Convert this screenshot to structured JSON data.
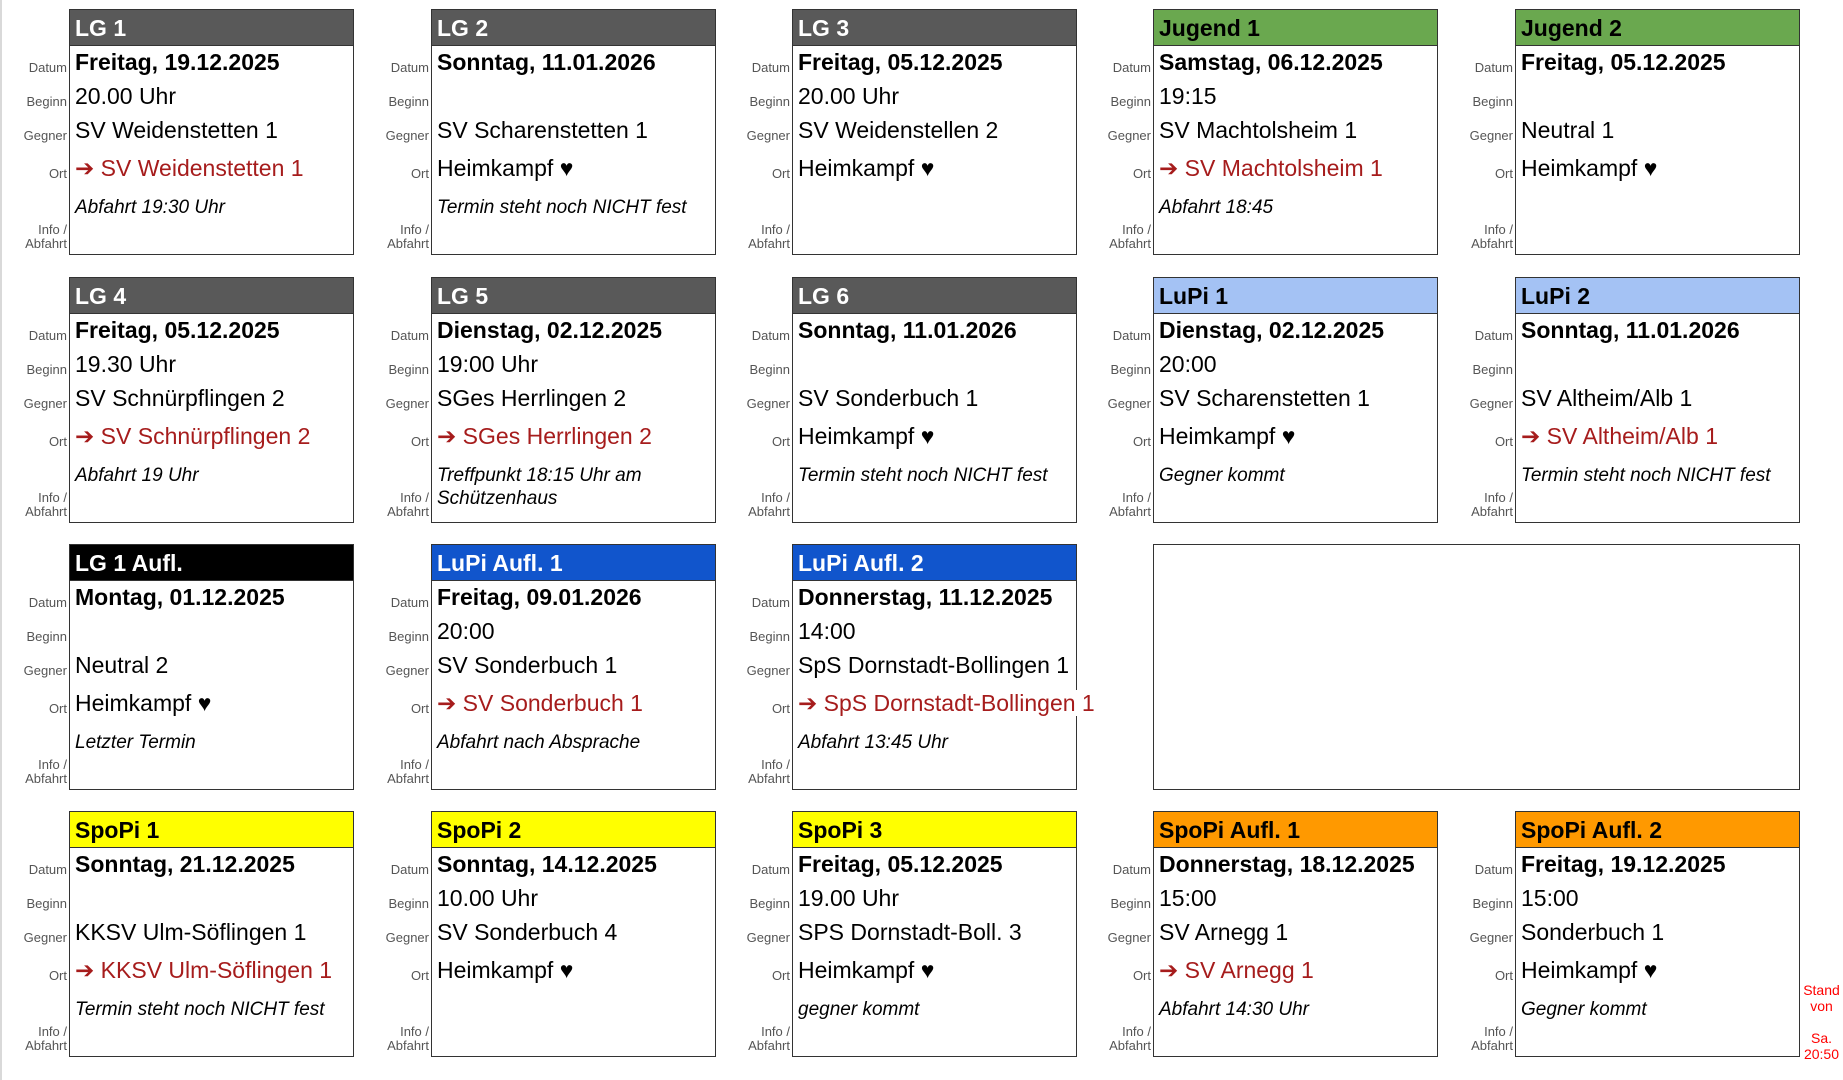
{
  "labels": {
    "datum": "Datum",
    "beginn": "Beginn",
    "gegner": "Gegner",
    "ort": "Ort",
    "info1": "Info /",
    "info2": "Abfahrt"
  },
  "away_arrow": "➔",
  "colors": {
    "gray": "#595959",
    "green": "#6aa84f",
    "lightblue": "#a4c2f4",
    "black": "#000000",
    "blue": "#1155cc",
    "yellow": "#ffff00",
    "orange": "#ff9900",
    "away_text": "#a61c1c",
    "stand_text": "#ff0000"
  },
  "cards": [
    {
      "title": "LG 1",
      "color": "#595959",
      "fg": "#ffffff",
      "datum": "Freitag, 19.12.2025",
      "beginn": "20.00 Uhr",
      "gegner": "SV Weidenstetten 1",
      "ort": "SV Weidenstetten 1",
      "away": true,
      "info": "Abfahrt 19:30 Uhr"
    },
    {
      "title": "LG 2",
      "color": "#595959",
      "fg": "#ffffff",
      "datum": "Sonntag, 11.01.2026",
      "beginn": "",
      "gegner": "SV Scharenstetten 1",
      "ort": "Heimkampf ♥",
      "away": false,
      "info": "Termin steht noch NICHT fest"
    },
    {
      "title": "LG 3",
      "color": "#595959",
      "fg": "#ffffff",
      "datum": "Freitag, 05.12.2025",
      "beginn": "20.00 Uhr",
      "gegner": "SV Weidenstellen 2",
      "ort": "Heimkampf ♥",
      "away": false,
      "info": ""
    },
    {
      "title": "Jugend 1",
      "color": "#6aa84f",
      "fg": "#000000",
      "datum": "Samstag, 06.12.2025",
      "beginn": "19:15",
      "gegner": "SV Machtolsheim 1",
      "ort": "SV Machtolsheim 1",
      "away": true,
      "info": "Abfahrt 18:45"
    },
    {
      "title": "Jugend 2",
      "color": "#6aa84f",
      "fg": "#000000",
      "datum": "Freitag, 05.12.2025",
      "beginn": "",
      "gegner": "Neutral 1",
      "ort": "Heimkampf ♥",
      "away": false,
      "info": ""
    },
    {
      "title": "LG 4",
      "color": "#595959",
      "fg": "#ffffff",
      "datum": "Freitag, 05.12.2025",
      "beginn": "19.30 Uhr",
      "gegner": "SV Schnürpflingen 2",
      "ort": "SV Schnürpflingen 2",
      "away": true,
      "info": "Abfahrt 19 Uhr"
    },
    {
      "title": "LG 5",
      "color": "#595959",
      "fg": "#ffffff",
      "datum": "Dienstag, 02.12.2025",
      "beginn": "19:00 Uhr",
      "gegner": "SGes Herrlingen 2",
      "ort": "SGes Herrlingen 2",
      "away": true,
      "info": "Treffpunkt 18:15 Uhr am Schützenhaus"
    },
    {
      "title": "LG 6",
      "color": "#595959",
      "fg": "#ffffff",
      "datum": "Sonntag, 11.01.2026",
      "beginn": "",
      "gegner": "SV Sonderbuch 1",
      "ort": "Heimkampf ♥",
      "away": false,
      "info": "Termin steht noch NICHT fest"
    },
    {
      "title": "LuPi 1",
      "color": "#a4c2f4",
      "fg": "#000000",
      "datum": "Dienstag, 02.12.2025",
      "beginn": "20:00",
      "gegner": "SV Scharenstetten 1",
      "ort": "Heimkampf ♥",
      "away": false,
      "info": "Gegner kommt"
    },
    {
      "title": "LuPi 2",
      "color": "#a4c2f4",
      "fg": "#000000",
      "datum": "Sonntag, 11.01.2026",
      "beginn": "",
      "gegner": "SV Altheim/Alb 1",
      "ort": "SV Altheim/Alb 1",
      "away": true,
      "info": "Termin steht noch NICHT fest"
    },
    {
      "title": "LG 1 Aufl.",
      "color": "#000000",
      "fg": "#ffffff",
      "datum": "Montag, 01.12.2025",
      "beginn": "",
      "gegner": "Neutral 2",
      "ort": "Heimkampf ♥",
      "away": false,
      "info": "Letzter Termin"
    },
    {
      "title": "LuPi Aufl. 1",
      "color": "#1155cc",
      "fg": "#ffffff",
      "datum": "Freitag, 09.01.2026",
      "beginn": "20:00",
      "gegner": "SV Sonderbuch 1",
      "ort": "SV Sonderbuch 1",
      "away": true,
      "info": "Abfahrt nach Absprache"
    },
    {
      "title": "LuPi Aufl. 2",
      "color": "#1155cc",
      "fg": "#ffffff",
      "datum": "Donnerstag, 11.12.2025",
      "beginn": "14:00",
      "gegner": "SpS Dornstadt-Bollingen 1",
      "ort": "SpS Dornstadt-Bollingen 1",
      "away": true,
      "info": "Abfahrt 13:45 Uhr"
    },
    {
      "title": "SpoPi 1",
      "color": "#ffff00",
      "fg": "#000000",
      "datum": "Sonntag, 21.12.2025",
      "beginn": "",
      "gegner": "KKSV Ulm-Söflingen 1",
      "ort": "KKSV Ulm-Söflingen 1",
      "away": true,
      "info": "Termin steht noch NICHT fest"
    },
    {
      "title": "SpoPi 2",
      "color": "#ffff00",
      "fg": "#000000",
      "datum": "Sonntag, 14.12.2025",
      "beginn": "10.00 Uhr",
      "gegner": "SV Sonderbuch 4",
      "ort": "Heimkampf ♥",
      "away": false,
      "info": ""
    },
    {
      "title": "SpoPi 3",
      "color": "#ffff00",
      "fg": "#000000",
      "datum": "Freitag, 05.12.2025",
      "beginn": "19.00 Uhr",
      "gegner": "SPS Dornstadt-Boll. 3",
      "ort": "Heimkampf ♥",
      "away": false,
      "info": "gegner kommt"
    },
    {
      "title": "SpoPi Aufl. 1",
      "color": "#ff9900",
      "fg": "#000000",
      "datum": "Donnerstag, 18.12.2025",
      "beginn": "15:00",
      "gegner": "SV Arnegg 1",
      "ort": "SV Arnegg 1",
      "away": true,
      "info": "Abfahrt 14:30 Uhr"
    },
    {
      "title": "SpoPi Aufl. 2",
      "color": "#ff9900",
      "fg": "#000000",
      "datum": "Freitag, 19.12.2025",
      "beginn": "15:00",
      "gegner": "Sonderbuch 1",
      "ort": "Heimkampf ♥",
      "away": false,
      "info": "Gegner kommt"
    }
  ],
  "stand": {
    "line1": "Stand",
    "line2": "von",
    "line3": "Sa.",
    "line4": "20:50"
  }
}
